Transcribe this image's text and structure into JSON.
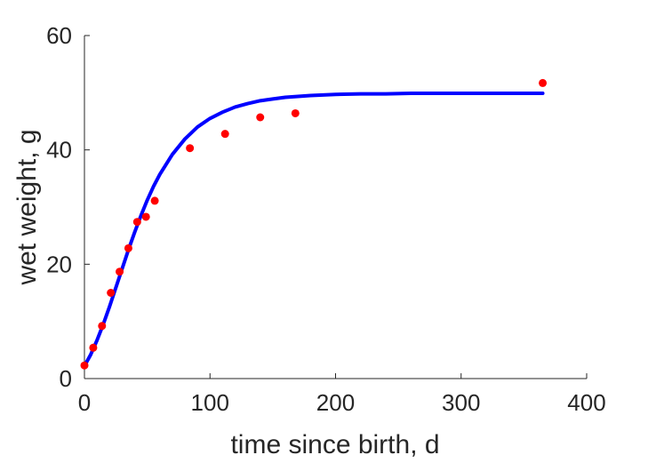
{
  "chart_data": {
    "type": "scatter",
    "title": "",
    "xlabel": "time since birth, d",
    "ylabel": "wet weight, g",
    "xlim": [
      0,
      400
    ],
    "ylim": [
      0,
      60
    ],
    "xticks": [
      "0",
      "100",
      "200",
      "300",
      "400"
    ],
    "yticks": [
      "0",
      "20",
      "40",
      "60"
    ],
    "grid": false,
    "legend": "none",
    "series": [
      {
        "kind": "points",
        "color": "#ff0000",
        "x": [
          0,
          7,
          14,
          21,
          28,
          35,
          42,
          49,
          56,
          84,
          112,
          140,
          168,
          365
        ],
        "y": [
          2.3,
          5.4,
          9.2,
          15.0,
          18.7,
          22.8,
          27.4,
          28.3,
          31.1,
          40.3,
          42.8,
          45.7,
          46.4,
          51.7
        ]
      },
      {
        "kind": "fitted-curve",
        "color": "#0000ff",
        "x": [
          0,
          5,
          10,
          15,
          20,
          25,
          30,
          35,
          40,
          45,
          50,
          55,
          60,
          70,
          80,
          90,
          100,
          110,
          120,
          130,
          140,
          150,
          160,
          180,
          200,
          220,
          240,
          260,
          280,
          300,
          330,
          365
        ],
        "y": [
          2.2,
          4.2,
          6.7,
          9.5,
          12.6,
          15.9,
          19.2,
          22.5,
          25.6,
          28.5,
          31.2,
          33.6,
          35.7,
          39.2,
          41.9,
          44.0,
          45.5,
          46.6,
          47.5,
          48.1,
          48.6,
          48.9,
          49.2,
          49.5,
          49.7,
          49.8,
          49.8,
          49.9,
          49.9,
          49.9,
          49.9,
          49.9
        ]
      }
    ]
  }
}
